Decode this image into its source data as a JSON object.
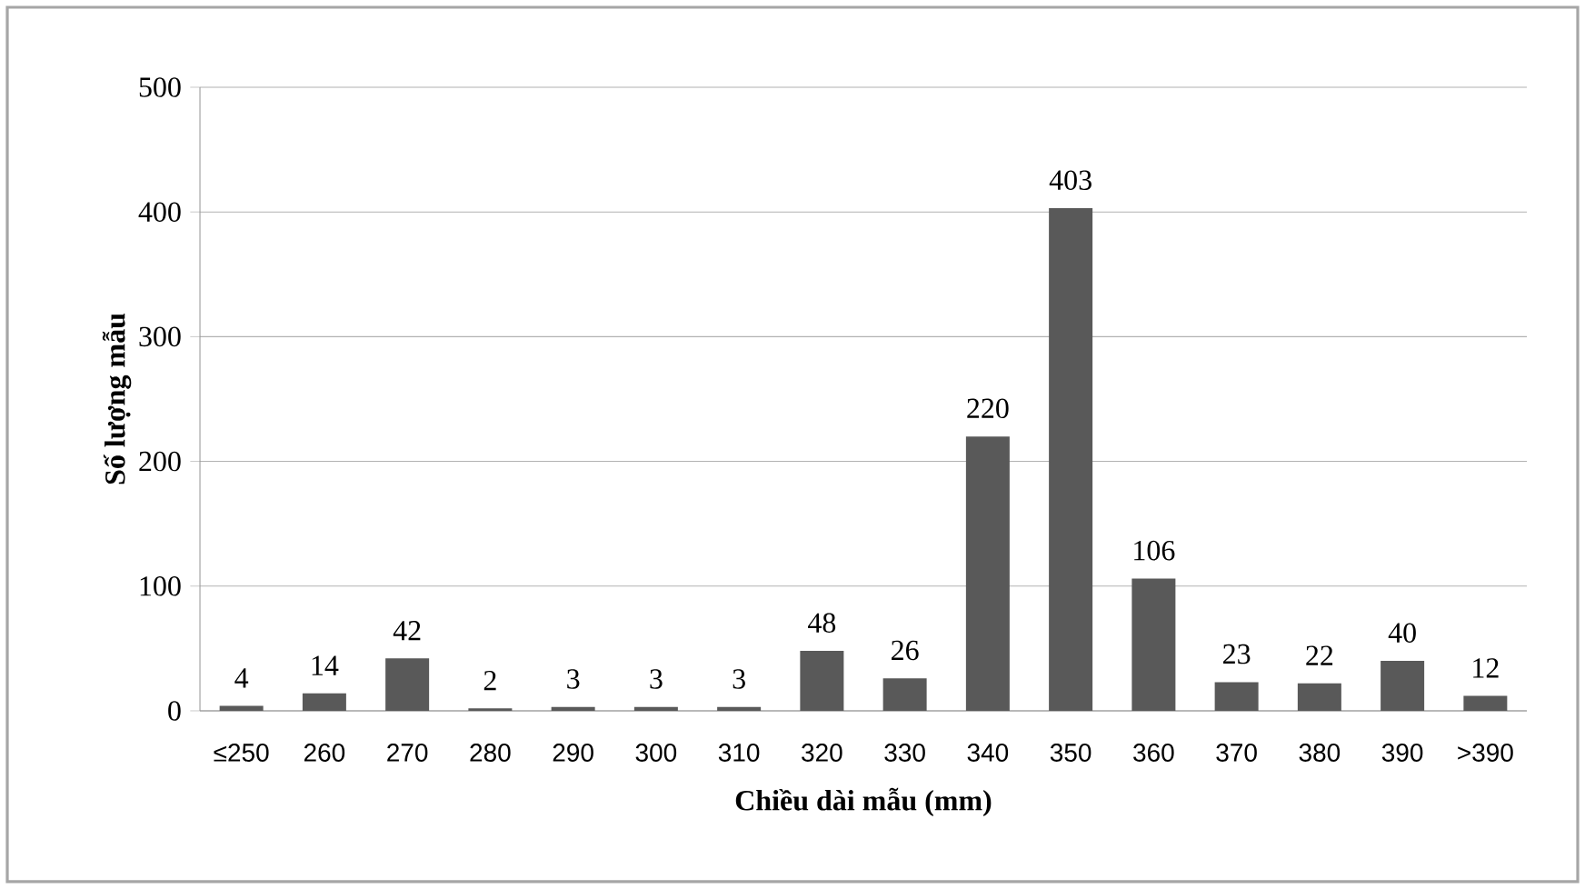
{
  "chart_data": {
    "type": "bar",
    "xlabel": "Chiều dài mẫu (mm)",
    "ylabel": "Số lượng mẫu",
    "categories": [
      "≤250",
      "260",
      "270",
      "280",
      "290",
      "300",
      "310",
      "320",
      "330",
      "340",
      "350",
      "360",
      "370",
      "380",
      "390",
      ">390"
    ],
    "values": [
      4,
      14,
      42,
      2,
      3,
      3,
      3,
      48,
      26,
      220,
      403,
      106,
      23,
      22,
      40,
      12
    ],
    "color": "#595959",
    "ylim": [
      0,
      500
    ],
    "yticks": [
      0,
      100,
      200,
      300,
      400,
      500
    ],
    "grid": "y",
    "data_labels": true
  }
}
